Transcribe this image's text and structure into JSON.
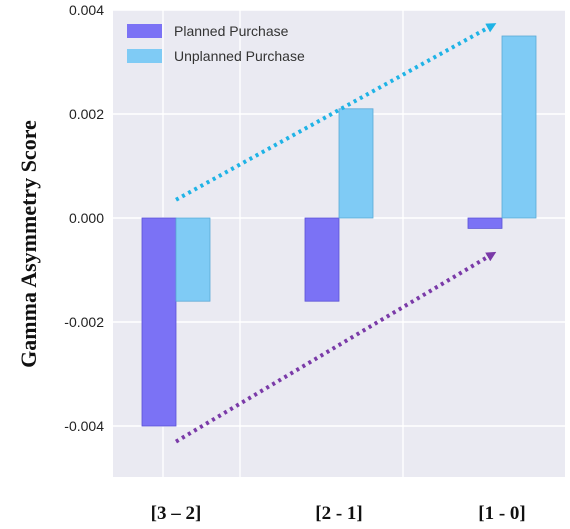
{
  "chart_data": {
    "type": "bar",
    "ylabel": "Gamma Asymmetry Score",
    "xlabel": "",
    "title": "",
    "categories": [
      "[3 – 2]",
      "[2 - 1]",
      "[1 - 0]"
    ],
    "series": [
      {
        "name": "Planned Purchase",
        "values": [
          -0.004,
          -0.0016,
          -0.0002
        ],
        "color": "#7b72f5"
      },
      {
        "name": "Unplanned Purchase",
        "values": [
          -0.0016,
          0.0021,
          0.0035
        ],
        "color": "#7fcbf5"
      }
    ],
    "ylim": [
      -0.0049,
      0.004
    ],
    "yticks": [
      -0.004,
      -0.002,
      0.0,
      0.002,
      0.004
    ],
    "ytick_labels": [
      "-0.004",
      "-0.002",
      "0.000",
      "0.002",
      "0.004"
    ],
    "grid": true,
    "legend_position": "top-left",
    "trend_arrows": [
      {
        "series": "Unplanned Purchase",
        "from_category": "[3 – 2]",
        "from_value": 0.00035,
        "to_category": "[1 - 0]",
        "to_value": 0.0037,
        "color": "#1fb3e6"
      },
      {
        "series": "Planned Purchase",
        "from_category": "[3 – 2]",
        "from_value": -0.0043,
        "to_category": "[1 - 0]",
        "to_value": -0.0007,
        "color": "#7a3aa8"
      }
    ]
  }
}
